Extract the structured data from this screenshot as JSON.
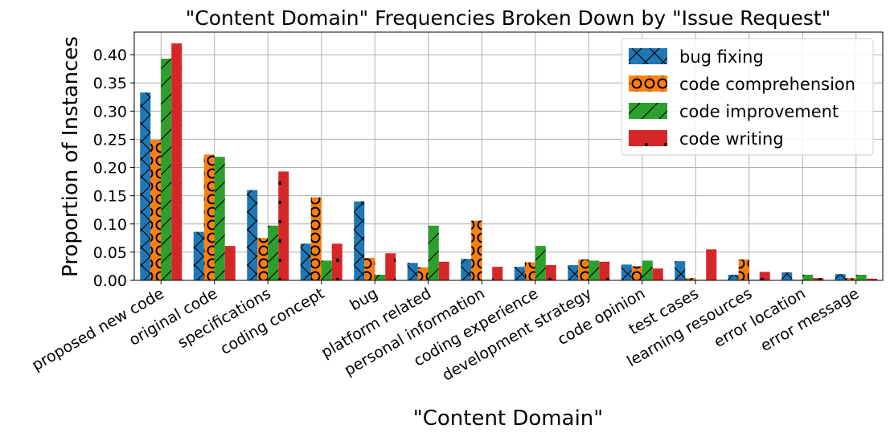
{
  "chart_data": {
    "type": "bar",
    "title": "\"Content Domain\" Frequencies Broken Down by \"Issue Request\"",
    "xlabel": "\"Content Domain\"",
    "ylabel": "Proportion of Instances",
    "ylim": [
      0,
      0.44
    ],
    "yticks": [
      0.0,
      0.05,
      0.1,
      0.15,
      0.2,
      0.25,
      0.3,
      0.35,
      0.4
    ],
    "ytick_labels": [
      "0.00",
      "0.05",
      "0.10",
      "0.15",
      "0.20",
      "0.25",
      "0.30",
      "0.35",
      "0.40"
    ],
    "grid": true,
    "legend_position": "top-right",
    "categories": [
      "proposed new code",
      "original code",
      "specifications",
      "coding concept",
      "bug",
      "platform related",
      "personal information",
      "coding experience",
      "development strategy",
      "code opinion",
      "test cases",
      "learning resources",
      "error location",
      "error message"
    ],
    "series": [
      {
        "name": "bug fixing",
        "color": "#1f77b4",
        "hatch": "x",
        "values": [
          0.333,
          0.086,
          0.16,
          0.065,
          0.14,
          0.031,
          0.038,
          0.024,
          0.027,
          0.028,
          0.034,
          0.01,
          0.014,
          0.011
        ]
      },
      {
        "name": "code comprehension",
        "color": "#ff7f0e",
        "hatch": "o",
        "values": [
          0.249,
          0.223,
          0.075,
          0.147,
          0.04,
          0.023,
          0.106,
          0.032,
          0.037,
          0.025,
          0.004,
          0.037,
          0.001,
          0.004
        ]
      },
      {
        "name": "code improvement",
        "color": "#2ca02c",
        "hatch": "/",
        "values": [
          0.393,
          0.219,
          0.097,
          0.035,
          0.01,
          0.097,
          0.001,
          0.061,
          0.035,
          0.035,
          0.001,
          0.001,
          0.01,
          0.01
        ]
      },
      {
        "name": "code writing",
        "color": "#d62728",
        "hatch": ".",
        "values": [
          0.42,
          0.061,
          0.193,
          0.065,
          0.048,
          0.033,
          0.024,
          0.027,
          0.033,
          0.021,
          0.055,
          0.015,
          0.004,
          0.003
        ]
      }
    ]
  }
}
